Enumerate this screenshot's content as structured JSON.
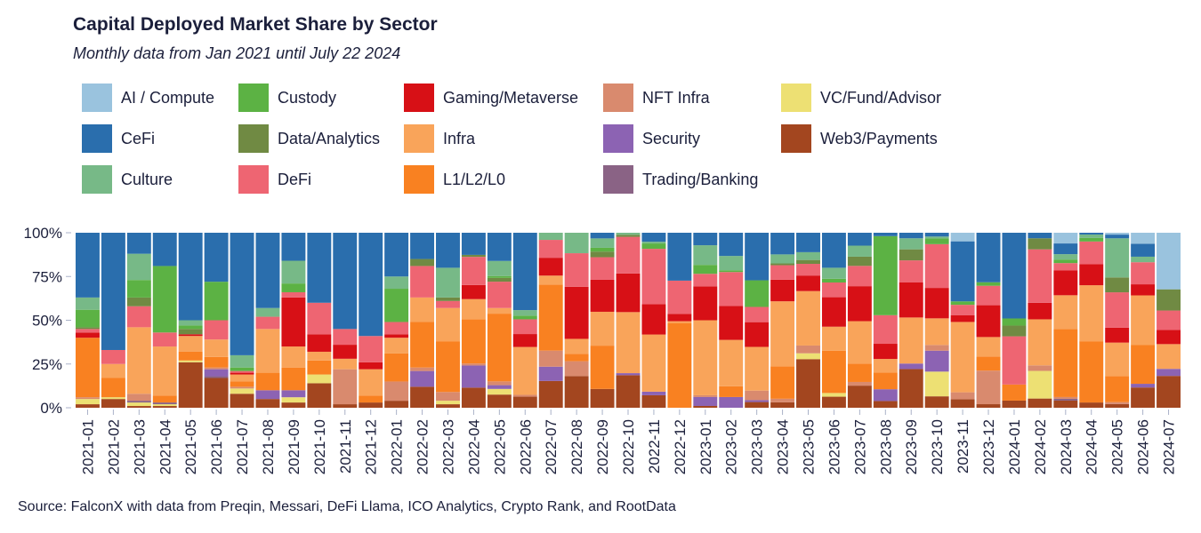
{
  "title": "Capital Deployed Market Share by Sector",
  "subtitle": "Monthly data from Jan 2021 until July 22 2024",
  "source": "Source: FalconX with data from Preqin, Messari, DeFi Llama, ICO Analytics, Crypto Rank, and RootData",
  "chart_data": {
    "type": "bar",
    "stacked": true,
    "normalized_percent": true,
    "ylim": [
      0,
      100
    ],
    "y_ticks": [
      "0%",
      "25%",
      "50%",
      "75%",
      "100%"
    ],
    "legend_position": "top",
    "grid": false,
    "categories": [
      "2021-01",
      "2021-02",
      "2021-03",
      "2021-04",
      "2021-05",
      "2021-06",
      "2021-07",
      "2021-08",
      "2021-09",
      "2021-10",
      "2021-11",
      "2021-12",
      "2022-01",
      "2022-02",
      "2022-03",
      "2022-04",
      "2022-05",
      "2022-06",
      "2022-07",
      "2022-08",
      "2022-09",
      "2022-10",
      "2022-11",
      "2022-12",
      "2023-01",
      "2023-02",
      "2023-03",
      "2023-04",
      "2023-05",
      "2023-06",
      "2023-07",
      "2023-08",
      "2023-09",
      "2023-10",
      "2023-11",
      "2023-12",
      "2024-01",
      "2024-02",
      "2024-03",
      "2024-04",
      "2024-05",
      "2024-06",
      "2024-07"
    ],
    "series": [
      {
        "name": "Web3/Payments",
        "color": "#a3461f",
        "values": [
          2,
          5,
          1,
          1,
          26,
          17,
          8,
          5,
          3,
          14,
          2,
          3,
          4,
          12,
          2,
          10,
          7,
          6,
          15,
          17,
          10,
          16,
          7,
          0,
          1,
          0,
          3,
          3,
          25,
          6,
          12,
          4,
          21,
          6,
          5,
          2,
          4,
          5,
          4,
          3,
          2,
          11,
          18
        ]
      },
      {
        "name": "VC/Fund/Advisor",
        "color": "#ede073",
        "values": [
          3,
          1,
          2,
          1,
          1,
          0,
          3,
          0,
          3,
          5,
          0,
          0,
          0,
          0,
          2,
          0,
          3,
          0,
          0,
          0,
          0,
          0,
          0,
          0,
          0,
          0,
          0,
          0,
          3,
          2,
          0,
          0,
          0,
          13,
          0,
          0,
          0,
          15,
          0,
          0,
          0,
          0,
          0
        ]
      },
      {
        "name": "Trading/Banking",
        "color": "#8a6385",
        "values": [
          0,
          0,
          1,
          1,
          0,
          1,
          0,
          0,
          0,
          0,
          0,
          0,
          0,
          0,
          0,
          0,
          0,
          0,
          0,
          0,
          0,
          0,
          0,
          0,
          0,
          0,
          0,
          0,
          0,
          0,
          0,
          0,
          0,
          0,
          0,
          0,
          0,
          0,
          1,
          0,
          0,
          0,
          0
        ]
      },
      {
        "name": "Security",
        "color": "#8c63b3",
        "values": [
          0,
          0,
          0,
          0,
          0,
          4,
          0,
          5,
          4,
          0,
          0,
          0,
          0,
          9,
          0,
          11,
          2,
          0,
          8,
          0,
          0,
          1,
          2,
          0,
          5,
          6,
          1,
          0,
          0,
          0,
          0,
          7,
          3,
          11,
          0,
          0,
          0,
          0,
          0,
          0,
          0,
          2,
          4
        ]
      },
      {
        "name": "NFT Infra",
        "color": "#d98a6e",
        "values": [
          1,
          0,
          4,
          0,
          0,
          1,
          1,
          0,
          0,
          0,
          20,
          0,
          11,
          2,
          5,
          1,
          2,
          1,
          9,
          8,
          0,
          0,
          0,
          0,
          1,
          0,
          5,
          2,
          4,
          0,
          2,
          0,
          0,
          3,
          4,
          19,
          0,
          3,
          1,
          0,
          1,
          0,
          0
        ]
      },
      {
        "name": "L1/L2/L0",
        "color": "#f98121",
        "values": [
          34,
          11,
          0,
          4,
          5,
          6,
          3,
          10,
          13,
          8,
          0,
          4,
          16,
          26,
          29,
          22,
          36,
          0,
          37,
          4,
          23,
          0,
          0,
          46,
          0,
          6,
          0,
          18,
          0,
          23,
          10,
          10,
          0,
          0,
          0,
          8,
          9,
          0,
          38,
          35,
          14,
          21,
          0
        ]
      },
      {
        "name": "Infra",
        "color": "#f9a45a",
        "values": [
          0,
          8,
          38,
          28,
          9,
          10,
          4,
          25,
          12,
          5,
          6,
          15,
          9,
          14,
          19,
          10,
          3,
          26,
          5,
          8,
          18,
          30,
          32,
          1,
          42,
          26,
          23,
          36,
          28,
          13,
          23,
          8,
          25,
          14,
          41,
          11,
          0,
          25,
          19,
          32,
          18,
          27,
          14
        ]
      },
      {
        "name": "Gaming/Metaverse",
        "color": "#d71016",
        "values": [
          3,
          0,
          0,
          0,
          1,
          0,
          1,
          0,
          28,
          10,
          8,
          4,
          2,
          0,
          0,
          7,
          0,
          7,
          10,
          28,
          17,
          19,
          17,
          4,
          19,
          19,
          13,
          12,
          8,
          16,
          19,
          9,
          19,
          16,
          4,
          18,
          0,
          9,
          14,
          12,
          8,
          6,
          8
        ]
      },
      {
        "name": "DeFi",
        "color": "#ee6572",
        "values": [
          2,
          8,
          12,
          8,
          0,
          11,
          1,
          7,
          3,
          18,
          9,
          15,
          7,
          18,
          4,
          14,
          14,
          8,
          10,
          18,
          12,
          18,
          31,
          18,
          7,
          19,
          8,
          8,
          6,
          8,
          11,
          17,
          12,
          23,
          6,
          11,
          27,
          29,
          4,
          13,
          19,
          12,
          11
        ]
      },
      {
        "name": "Data/Analytics",
        "color": "#708a43",
        "values": [
          1,
          0,
          5,
          0,
          3,
          0,
          0,
          0,
          0,
          0,
          0,
          0,
          0,
          4,
          2,
          1,
          2,
          0,
          0,
          0,
          3,
          1,
          0,
          0,
          0,
          0,
          0,
          1,
          2,
          0,
          5,
          0,
          6,
          0,
          0,
          0,
          6,
          6,
          0,
          0,
          8,
          0,
          12
        ]
      },
      {
        "name": "Custody",
        "color": "#5cb244",
        "values": [
          10,
          0,
          10,
          38,
          2,
          22,
          2,
          0,
          5,
          0,
          0,
          0,
          19,
          0,
          0,
          0,
          1,
          2,
          0,
          0,
          2,
          0,
          3,
          0,
          5,
          1,
          14,
          0,
          0,
          2,
          0,
          47,
          0,
          3,
          2,
          2,
          4,
          0,
          2,
          2,
          0,
          0,
          0
        ]
      },
      {
        "name": "Culture",
        "color": "#77b987",
        "values": [
          7,
          0,
          15,
          0,
          3,
          0,
          7,
          5,
          13,
          0,
          0,
          0,
          7,
          0,
          17,
          0,
          8,
          3,
          4,
          11,
          5,
          1,
          1,
          0,
          11,
          8,
          0,
          5,
          4,
          6,
          6,
          0,
          6,
          1,
          0,
          0,
          0,
          0,
          3,
          2,
          21,
          3,
          0
        ]
      },
      {
        "name": "CeFi",
        "color": "#2a6ead",
        "values": [
          37,
          67,
          12,
          19,
          50,
          28,
          70,
          43,
          16,
          40,
          55,
          59,
          25,
          15,
          20,
          11,
          15,
          42,
          0,
          0,
          3,
          0,
          5,
          26,
          7,
          13,
          25,
          12,
          10,
          19,
          7,
          2,
          3,
          2,
          35,
          28,
          48,
          3,
          6,
          1,
          2,
          7,
          0
        ]
      },
      {
        "name": "AI / Compute",
        "color": "#9ac3de",
        "values": [
          0,
          0,
          0,
          0,
          0,
          0,
          0,
          0,
          0,
          0,
          0,
          0,
          0,
          0,
          0,
          0,
          0,
          0,
          0,
          0,
          0,
          0,
          0,
          0,
          0,
          0,
          0,
          0,
          0,
          0,
          0,
          0,
          0,
          0,
          5,
          0,
          0,
          0,
          6,
          0,
          1,
          6,
          32
        ]
      }
    ]
  },
  "legend": [
    {
      "label": "AI / Compute",
      "color": "#9ac3de"
    },
    {
      "label": "CeFi",
      "color": "#2a6ead"
    },
    {
      "label": "Culture",
      "color": "#77b987"
    },
    {
      "label": "Custody",
      "color": "#5cb244"
    },
    {
      "label": "Data/Analytics",
      "color": "#708a43"
    },
    {
      "label": "DeFi",
      "color": "#ee6572"
    },
    {
      "label": "Gaming/Metaverse",
      "color": "#d71016"
    },
    {
      "label": "Infra",
      "color": "#f9a45a"
    },
    {
      "label": "L1/L2/L0",
      "color": "#f98121"
    },
    {
      "label": "NFT Infra",
      "color": "#d98a6e"
    },
    {
      "label": "Security",
      "color": "#8c63b3"
    },
    {
      "label": "Trading/Banking",
      "color": "#8a6385"
    },
    {
      "label": "VC/Fund/Advisor",
      "color": "#ede073"
    },
    {
      "label": "Web3/Payments",
      "color": "#a3461f"
    }
  ]
}
